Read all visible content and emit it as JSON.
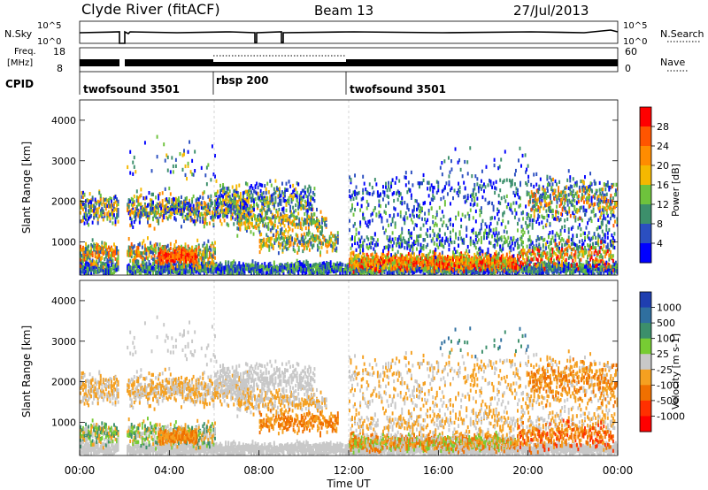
{
  "header": {
    "station": "Clyde River (fitACF)",
    "beam": "Beam 13",
    "date": "27/Jul/2013"
  },
  "noise_panel": {
    "left_label": "N.Sky",
    "right_label": "N.Search",
    "left_ticks": [
      "10^5",
      "10^0"
    ],
    "right_ticks": [
      "10^5",
      "10^0"
    ]
  },
  "freq_panel": {
    "left_label_1": "Freq.",
    "left_label_2": "[MHz]",
    "right_label": "Nave",
    "left_ticks": [
      "18",
      "8"
    ],
    "right_ticks": [
      "60",
      "0"
    ]
  },
  "cpid": {
    "label": "CPID",
    "segments": [
      {
        "name": "twofsound 3501",
        "start": 0,
        "end": 6
      },
      {
        "name": "rbsp 200",
        "start": 6,
        "end": 12
      },
      {
        "name": "twofsound 3501",
        "start": 12,
        "end": 24
      }
    ]
  },
  "chart_data": [
    {
      "type": "heatmap",
      "parameter": "Power",
      "ylabel": "Slant Range [km]",
      "xlabel": "",
      "xlim": [
        0,
        24
      ],
      "ylim": [
        180,
        4500
      ],
      "yticks": [
        1000,
        2000,
        3000,
        4000
      ],
      "colorbar": {
        "label": "Power [dB]",
        "ticks": [
          "28",
          "24",
          "20",
          "16",
          "12",
          "8",
          "4"
        ],
        "colors": [
          "#ff0000",
          "#ff5500",
          "#ff8c00",
          "#f5b800",
          "#6ec23c",
          "#3c8f6b",
          "#2b4fc0",
          "#0000ff"
        ]
      }
    },
    {
      "type": "heatmap",
      "parameter": "Velocity",
      "ylabel": "Slant Range [km]",
      "xlabel": "Time UT",
      "xlim": [
        0,
        24
      ],
      "ylim": [
        180,
        4500
      ],
      "yticks": [
        1000,
        2000,
        3000,
        4000
      ],
      "xticks": [
        "00:00",
        "04:00",
        "08:00",
        "12:00",
        "16:00",
        "20:00",
        "00:00"
      ],
      "colorbar": {
        "label": "Velocity [m s-1]",
        "ticks": [
          "1000",
          "500",
          "100",
          "25",
          "-25",
          "-100",
          "-500",
          "-1000"
        ],
        "colors": [
          "#1f3fb0",
          "#2f6f9f",
          "#3c8f6b",
          "#77cc33",
          "#c8c8c8",
          "#f5a020",
          "#f07000",
          "#ff3000",
          "#ff0000"
        ]
      }
    }
  ]
}
